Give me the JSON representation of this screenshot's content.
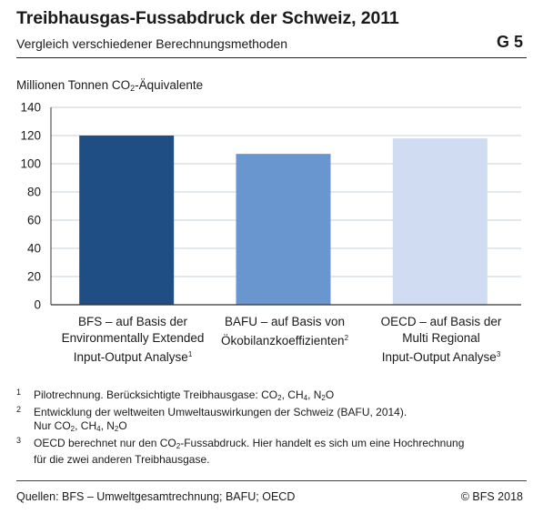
{
  "header": {
    "title": "Treibhausgas-Fussabdruck der Schweiz, 2011",
    "subtitle": "Vergleich verschiedener Berechnungsmethoden",
    "code": "G 5"
  },
  "axis": {
    "ylabel_pre": "Millionen Tonnen CO",
    "ylabel_sub": "2",
    "ylabel_post": "-Äquivalente"
  },
  "chart_data": {
    "type": "bar",
    "ylabel": "Millionen Tonnen CO2-Äquivalente",
    "ylim": [
      0,
      140
    ],
    "yticks": [
      0,
      20,
      40,
      60,
      80,
      100,
      120,
      140
    ],
    "grid": true,
    "categories": [
      "BFS – auf Basis der Environmentally Extended Input-Output Analyse¹",
      "BAFU – auf Basis von Ökobilanzkoeffizienten²",
      "OECD – auf Basis der Multi Regional Input-Output Analyse³"
    ],
    "values": [
      120,
      107,
      118
    ],
    "colors": [
      "#1f4e85",
      "#6a96d0",
      "#cfdcf2"
    ],
    "gridColor": "#c7d0da",
    "axisColor": "#333333"
  },
  "category_labels": [
    {
      "line1": "BFS – auf Basis der",
      "line2": "Environmentally Extended",
      "line3": "Input-Output Analyse",
      "sup": "1"
    },
    {
      "line1": "BAFU – auf Basis von",
      "line2": "Ökobilanzkoeffizienten",
      "line3": "",
      "sup": "2"
    },
    {
      "line1": "OECD – auf Basis der",
      "line2": "Multi Regional",
      "line3": "Input-Output Analyse",
      "sup": "3"
    }
  ],
  "footnotes": [
    {
      "num": "1",
      "l1_a": "Pilotrechnung. Berücksichtigte Treibhausgase: CO",
      "l1_b": ", CH",
      "l1_c": ", N",
      "l1_d": "O",
      "sub1": "2",
      "sub2": "4",
      "sub3": "2"
    },
    {
      "num": "2",
      "l1": "Entwicklung der weltweiten Umweltauswirkungen der Schweiz (BAFU, 2014).",
      "l2_a": "Nur CO",
      "l2_b": ", CH",
      "l2_c": ", N",
      "l2_d": "O",
      "sub1": "2",
      "sub2": "4",
      "sub3": "2"
    },
    {
      "num": "3",
      "l1_a": "OECD berechnet nur den CO",
      "l1_b": "-Fussabdruck. Hier handelt es sich um eine Hochrechnung",
      "sub1": "2",
      "l2": "für die zwei anderen Treibhausgase."
    }
  ],
  "footer": {
    "source": "Quellen: BFS – Umweltgesamtrechnung; BAFU; OECD",
    "copyright": "© BFS 2018"
  }
}
